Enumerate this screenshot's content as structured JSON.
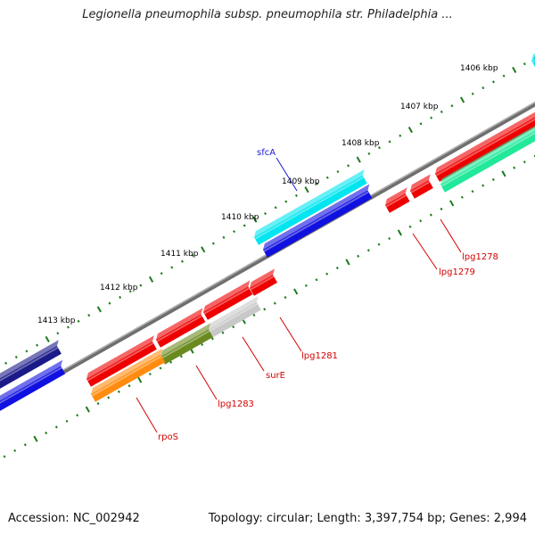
{
  "title": "Legionella pneumophila subsp. pneumophila str. Philadelphia ...",
  "footer": {
    "accession": "Accession: NC_002942",
    "summary": "Topology: circular; Length: 3,397,754 bp; Genes: 2,994"
  },
  "scale": {
    "ticks": [
      "1406 kbp",
      "1407 kbp",
      "1408 kbp",
      "1409 kbp",
      "1410 kbp",
      "1411 kbp",
      "1412 kbp",
      "1413 kbp"
    ]
  },
  "gene_labels": {
    "sfcA": "sfcA",
    "lpg1278": "lpg1278",
    "lpg1279": "lpg1279",
    "lpg1281": "lpg1281",
    "surE": "surE",
    "lpg1283": "lpg1283",
    "rpoS": "rpoS"
  },
  "colors": {
    "backbone": "#808080",
    "tick": "#1a7a1a",
    "red": "#ee0000",
    "cyan": "#00e5f0",
    "blue": "#1010e0",
    "navy": "#1a1a88",
    "mint": "#22e89a",
    "olive": "#6a8a20",
    "orange": "#ff8c10",
    "grey": "#c8c8c8"
  }
}
